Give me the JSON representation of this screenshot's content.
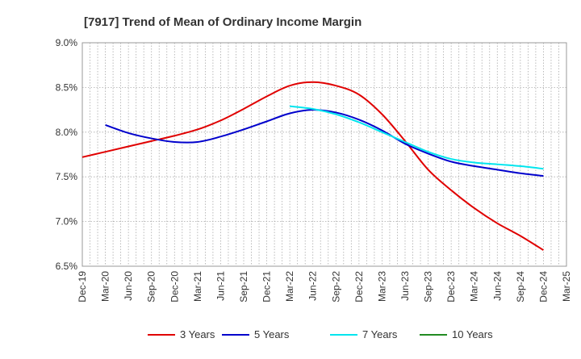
{
  "chart_data": {
    "type": "line",
    "title": "[7917]  Trend of Mean of Ordinary Income Margin",
    "xlabel": "",
    "ylabel": "",
    "ylim": [
      6.5,
      9.0
    ],
    "grid": true,
    "legend_position": "bottom",
    "x_tick_labels": [
      "Dec-19",
      "Mar-20",
      "Jun-20",
      "Sep-20",
      "Dec-20",
      "Mar-21",
      "Jun-21",
      "Sep-21",
      "Dec-21",
      "Mar-22",
      "Jun-22",
      "Sep-22",
      "Dec-22",
      "Mar-23",
      "Jun-23",
      "Sep-23",
      "Dec-23",
      "Mar-24",
      "Jun-24",
      "Sep-24",
      "Dec-24",
      "Mar-25"
    ],
    "y_ticks": [
      6.5,
      7.0,
      7.5,
      8.0,
      8.5,
      9.0
    ],
    "y_tick_labels": [
      "6.5%",
      "7.0%",
      "7.5%",
      "8.0%",
      "8.5%",
      "9.0%"
    ],
    "series": [
      {
        "name": "3 Years",
        "color": "#e00000",
        "values": [
          7.72,
          7.78,
          7.84,
          7.9,
          7.96,
          8.03,
          8.13,
          8.26,
          8.4,
          8.52,
          8.56,
          8.52,
          8.42,
          8.2,
          7.9,
          7.58,
          7.35,
          7.15,
          6.98,
          6.84,
          6.68,
          null
        ]
      },
      {
        "name": "5 Years",
        "color": "#0000cc",
        "values": [
          null,
          8.08,
          7.99,
          7.93,
          7.89,
          7.89,
          7.95,
          8.03,
          8.12,
          8.21,
          8.25,
          8.22,
          8.14,
          8.02,
          7.87,
          7.76,
          7.67,
          7.62,
          7.58,
          7.54,
          7.51,
          null
        ]
      },
      {
        "name": "7 Years",
        "color": "#00e5ee",
        "values": [
          null,
          null,
          null,
          null,
          null,
          null,
          null,
          null,
          null,
          8.29,
          8.26,
          8.2,
          8.11,
          8.0,
          7.89,
          7.78,
          7.7,
          7.66,
          7.64,
          7.62,
          7.59,
          null
        ]
      },
      {
        "name": "10 Years",
        "color": "#228b22",
        "values": [
          null,
          null,
          null,
          null,
          null,
          null,
          null,
          null,
          null,
          null,
          null,
          null,
          null,
          null,
          null,
          null,
          null,
          null,
          null,
          null,
          null,
          null
        ]
      }
    ]
  }
}
